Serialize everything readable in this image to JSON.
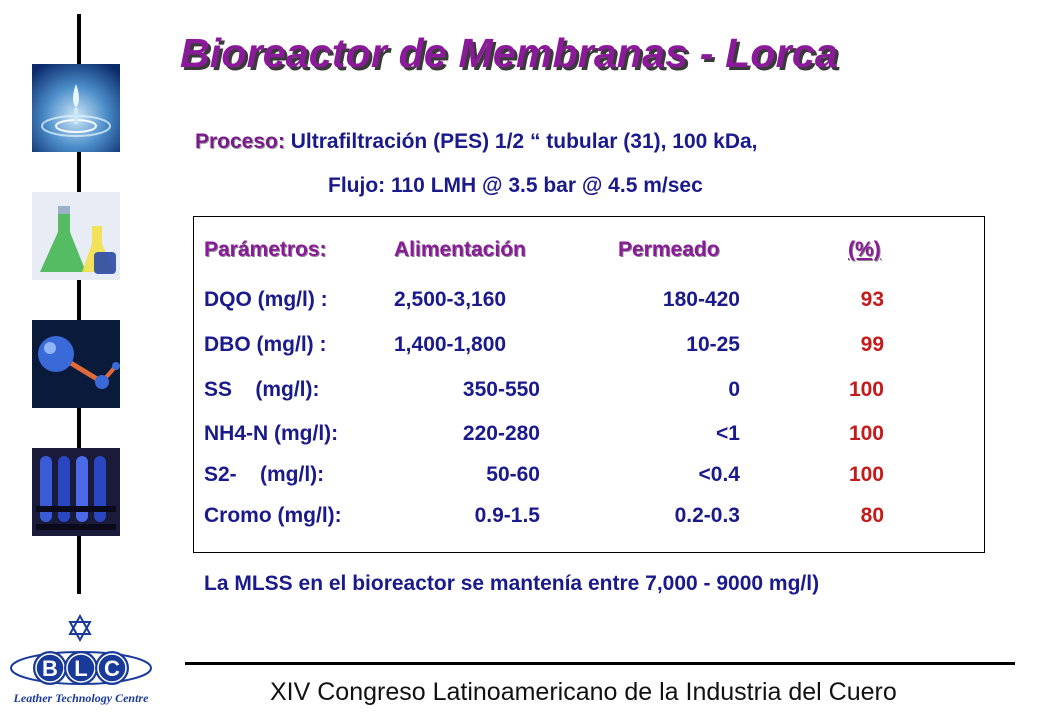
{
  "title": "Bioreactor de Membranas - Lorca",
  "proceso": {
    "label": "Proceso",
    "colon": ":",
    "line1": "Ultrafiltración (PES) 1/2 “ tubular (31), 100 kDa,",
    "line2": "Flujo: 110 LMH @ 3.5 bar @ 4.5 m/sec"
  },
  "table": {
    "headers": [
      "Parámetros:",
      "Alimentación",
      "Permeado",
      "(%)"
    ],
    "rows": [
      {
        "param": "DQO (mg/l) :",
        "alimentacion": "2,500-3,160",
        "permeado": "180-420",
        "pct": "93"
      },
      {
        "param": "DBO (mg/l) :",
        "alimentacion": "1,400-1,800",
        "permeado": "10-25",
        "pct": "99"
      },
      {
        "param": "SS    (mg/l):",
        "alimentacion": "350-550",
        "permeado": "0",
        "pct": "100"
      },
      {
        "param": "NH4-N (mg/l):",
        "alimentacion": "220-280",
        "permeado": "<1",
        "pct": "100"
      },
      {
        "param": "S2-    (mg/l):",
        "alimentacion": "50-60",
        "permeado": "<0.4",
        "pct": "100"
      },
      {
        "param": "Cromo (mg/l):",
        "alimentacion": "0.9-1.5",
        "permeado": "0.2-0.3",
        "pct": "80"
      }
    ]
  },
  "note": "La MLSS en el bioreactor se mantenía entre 7,000 - 9000 mg/l)",
  "footer": "XIV Congreso Latinoamericano de la Industria del Cuero",
  "logo": {
    "letters": [
      "B",
      "L",
      "C"
    ],
    "tagline": "Leather Technology Centre",
    "icon": "star-of-david-icon"
  },
  "thumbnails": [
    "water-drop-image",
    "lab-flasks-image",
    "molecule-image",
    "test-tubes-image"
  ],
  "colors": {
    "title": "#8b1a9a",
    "body_text": "#1a1a8c",
    "percent": "#c41a1a",
    "logo_blue": "#1a3a9a"
  }
}
